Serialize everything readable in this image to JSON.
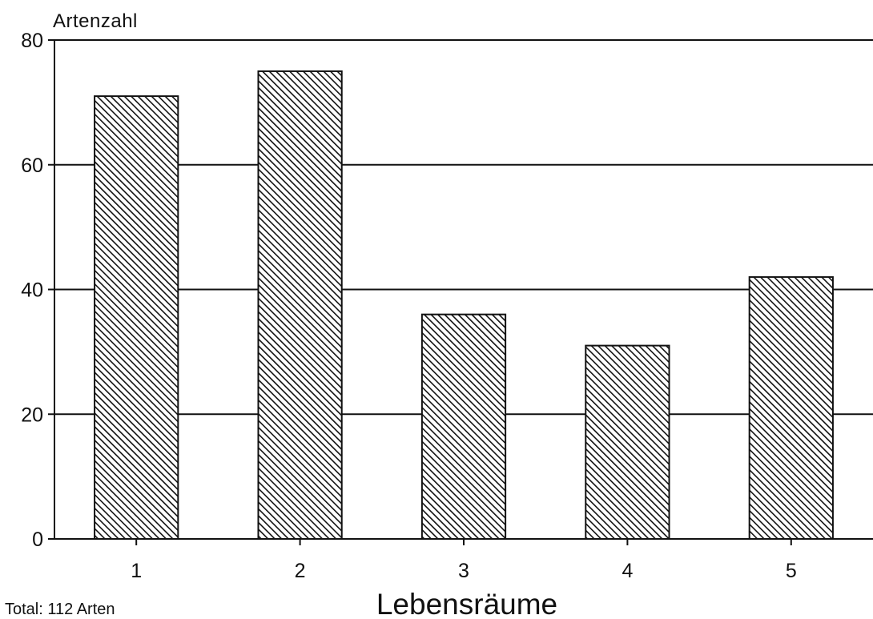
{
  "chart_data": {
    "type": "bar",
    "title": "",
    "ylabel": "Artenzahl",
    "xlabel": "Lebensräume",
    "categories": [
      "1",
      "2",
      "3",
      "4",
      "5"
    ],
    "values": [
      71,
      75,
      36,
      31,
      42
    ],
    "ylim": [
      0,
      80
    ],
    "yticks": [
      "0",
      "20",
      "40",
      "60",
      "80"
    ],
    "grid": true,
    "bar_fill": "diagonal-hatch",
    "note": "Total: 112 Arten"
  },
  "colors": {
    "ink": "#111111",
    "background": "#ffffff"
  }
}
